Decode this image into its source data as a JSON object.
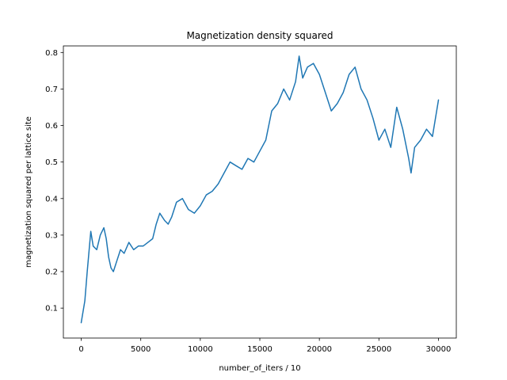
{
  "chart_data": {
    "type": "line",
    "title": "Magnetization density squared",
    "xlabel": "number_of_iters / 10",
    "ylabel": "magnetization squared per lattice site",
    "xlim": [
      -1500,
      31500
    ],
    "ylim": [
      0.018,
      0.818
    ],
    "xticks": [
      0,
      5000,
      10000,
      15000,
      20000,
      25000,
      30000
    ],
    "yticks": [
      0.1,
      0.2,
      0.3,
      0.4,
      0.5,
      0.6,
      0.7,
      0.8
    ],
    "xtick_labels": [
      "0",
      "5000",
      "10000",
      "15000",
      "20000",
      "25000",
      "30000"
    ],
    "ytick_labels": [
      "0.1",
      "0.2",
      "0.3",
      "0.4",
      "0.5",
      "0.6",
      "0.7",
      "0.8"
    ],
    "grid": false,
    "legend": "none",
    "color": "#1f77b4",
    "series": [
      {
        "x": [
          0,
          300,
          500,
          800,
          1000,
          1300,
          1600,
          1900,
          2100,
          2300,
          2500,
          2700,
          3000,
          3300,
          3600,
          4000,
          4400,
          4800,
          5200,
          5600,
          6000,
          6300,
          6600,
          7000,
          7300,
          7600,
          8000,
          8500,
          9000,
          9500,
          10000,
          10500,
          11000,
          11500,
          12000,
          12500,
          13000,
          13500,
          14000,
          14500,
          15000,
          15500,
          16000,
          16500,
          17000,
          17500,
          18000,
          18300,
          18600,
          19000,
          19500,
          20000,
          20500,
          21000,
          21500,
          22000,
          22500,
          23000,
          23500,
          24000,
          24500,
          25000,
          25500,
          26000,
          26500,
          27000,
          27500,
          27700,
          28000,
          28500,
          29000,
          29500,
          30000
        ],
        "y": [
          0.06,
          0.12,
          0.2,
          0.31,
          0.27,
          0.26,
          0.3,
          0.32,
          0.29,
          0.24,
          0.21,
          0.2,
          0.23,
          0.26,
          0.25,
          0.28,
          0.26,
          0.27,
          0.27,
          0.28,
          0.29,
          0.33,
          0.36,
          0.34,
          0.33,
          0.35,
          0.39,
          0.4,
          0.37,
          0.36,
          0.38,
          0.41,
          0.42,
          0.44,
          0.47,
          0.5,
          0.49,
          0.48,
          0.51,
          0.5,
          0.53,
          0.56,
          0.64,
          0.66,
          0.7,
          0.67,
          0.72,
          0.79,
          0.73,
          0.76,
          0.77,
          0.74,
          0.69,
          0.64,
          0.66,
          0.69,
          0.74,
          0.76,
          0.7,
          0.67,
          0.62,
          0.56,
          0.59,
          0.54,
          0.65,
          0.59,
          0.51,
          0.47,
          0.54,
          0.56,
          0.59,
          0.57,
          0.67
        ]
      }
    ]
  }
}
